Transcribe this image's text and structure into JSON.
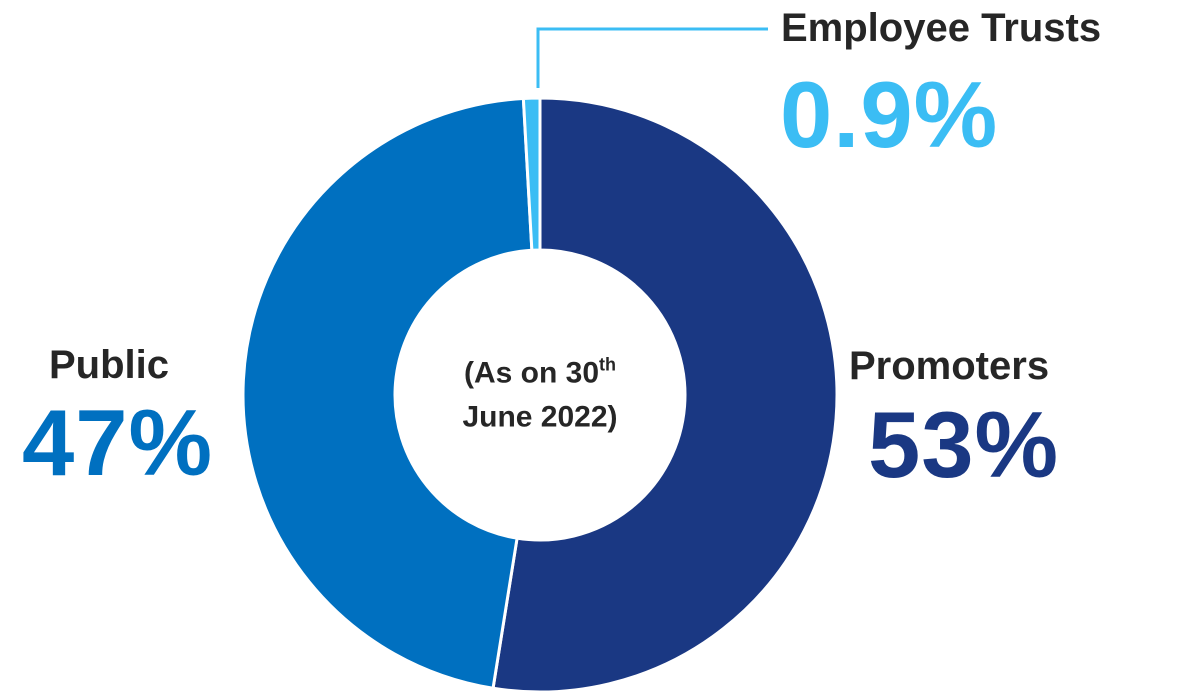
{
  "chart_data": {
    "type": "pie",
    "variant": "donut",
    "start": "top",
    "direction": "clockwise",
    "slices": [
      {
        "label": "Promoters",
        "value": 53,
        "display": "53%",
        "color": "#1a3883"
      },
      {
        "label": "Public",
        "value": 47,
        "display": "47%",
        "color": "#0070c0"
      },
      {
        "label": "Employee Trusts",
        "value": 0.9,
        "display": "0.9%",
        "color": "#3bbdf4"
      }
    ],
    "center_label": {
      "line1": "(As on 30",
      "line1_sup": "th",
      "line2": "June 2022)"
    },
    "separator_color": "#ffffff",
    "text_color": "#262626"
  }
}
